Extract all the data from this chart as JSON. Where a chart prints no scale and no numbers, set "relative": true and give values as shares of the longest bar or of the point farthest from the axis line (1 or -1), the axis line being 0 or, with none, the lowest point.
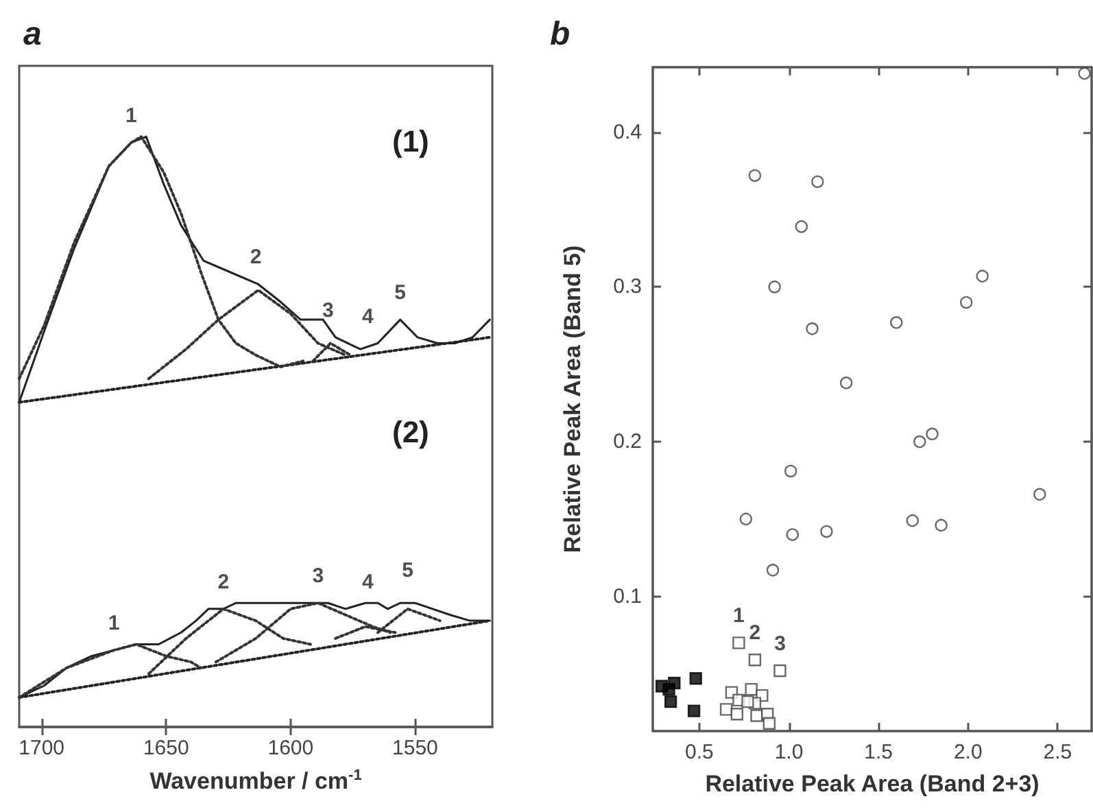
{
  "chart_data": [
    {
      "type": "line",
      "title": "a",
      "xlabel": "Wavenumber / cm$^{-1}$",
      "relative": true,
      "xlim": [
        1709,
        1519
      ],
      "xticks": [
        1700,
        1650,
        1600,
        1550
      ],
      "tick_labels": "x",
      "grid": false,
      "marker": "none",
      "series": [
        {
          "color": "#222222",
          "line_style": "solid",
          "x": [
            1709,
            1699,
            1687,
            1673,
            1664,
            1658,
            1651,
            1644,
            1635,
            1624,
            1613,
            1604,
            1596,
            1587,
            1582,
            1572,
            1565,
            1556,
            1549,
            1541,
            1534,
            1527,
            1520
          ],
          "values": [
            0.55,
            0.67,
            0.81,
            0.95,
            0.99,
            1,
            0.92,
            0.85,
            0.79,
            0.77,
            0.75,
            0.72,
            0.69,
            0.69,
            0.66,
            0.64,
            0.65,
            0.69,
            0.66,
            0.65,
            0.65,
            0.66,
            0.69
          ]
        },
        {
          "color": "#222222",
          "line_style": "dotted",
          "x": [
            1709,
            1520
          ],
          "values": [
            0.55,
            0.66
          ]
        },
        {
          "color": "#333333",
          "line_style": "dotted",
          "x": [
            1709,
            1699,
            1687,
            1673,
            1664,
            1660,
            1651,
            1644,
            1636,
            1629,
            1622,
            1614,
            1604,
            1595
          ],
          "values": [
            0.59,
            0.68,
            0.82,
            0.95,
            0.99,
            1,
            0.94,
            0.87,
            0.77,
            0.69,
            0.65,
            0.63,
            0.61,
            0.62
          ]
        },
        {
          "color": "#333333",
          "line_style": "dotted",
          "x": [
            1657,
            1642,
            1629,
            1613,
            1600,
            1589,
            1578
          ],
          "values": [
            0.59,
            0.64,
            0.69,
            0.74,
            0.7,
            0.65,
            0.63
          ]
        },
        {
          "color": "#333333",
          "line_style": "dotted",
          "x": [
            1591,
            1584,
            1576
          ],
          "values": [
            0.62,
            0.65,
            0.63
          ]
        },
        {
          "color": "#222222",
          "line_style": "solid",
          "x": [
            1709,
            1699,
            1690,
            1680,
            1671,
            1662,
            1653,
            1644,
            1638,
            1633,
            1627,
            1622,
            1614,
            1607,
            1600,
            1592,
            1585,
            1578,
            1570,
            1565,
            1561,
            1556,
            1550,
            1543,
            1536,
            1528,
            1520
          ],
          "values": [
            0.05,
            0.07,
            0.1,
            0.12,
            0.13,
            0.14,
            0.14,
            0.16,
            0.18,
            0.2,
            0.2,
            0.21,
            0.21,
            0.21,
            0.21,
            0.21,
            0.21,
            0.2,
            0.21,
            0.21,
            0.2,
            0.21,
            0.21,
            0.2,
            0.19,
            0.18,
            0.18
          ]
        },
        {
          "color": "#222222",
          "line_style": "dotted",
          "x": [
            1709,
            1520
          ],
          "values": [
            0.05,
            0.18
          ]
        },
        {
          "color": "#333333",
          "line_style": "dotted",
          "x": [
            1709,
            1690,
            1671,
            1662,
            1650,
            1640,
            1636
          ],
          "values": [
            0.05,
            0.1,
            0.13,
            0.14,
            0.12,
            0.11,
            0.1
          ]
        },
        {
          "color": "#333333",
          "line_style": "dotted",
          "x": [
            1657,
            1642,
            1627,
            1614,
            1603,
            1592
          ],
          "values": [
            0.09,
            0.15,
            0.2,
            0.18,
            0.15,
            0.14
          ]
        },
        {
          "color": "#333333",
          "line_style": "dotted",
          "x": [
            1630,
            1614,
            1600,
            1589,
            1578,
            1567,
            1560
          ],
          "values": [
            0.11,
            0.15,
            0.2,
            0.21,
            0.19,
            0.17,
            0.16
          ]
        },
        {
          "color": "#333333",
          "line_style": "dotted",
          "x": [
            1582,
            1570,
            1558
          ],
          "values": [
            0.15,
            0.17,
            0.16
          ]
        },
        {
          "color": "#333333",
          "line_style": "dotted",
          "x": [
            1565,
            1553,
            1540
          ],
          "values": [
            0.16,
            0.2,
            0.18
          ]
        }
      ],
      "annotations": [
        {
          "text": "1",
          "x": 1664,
          "y": 0.99
        },
        {
          "text": "2",
          "x": 1614,
          "y": 0.75
        },
        {
          "text": "3",
          "x": 1585,
          "y": 0.66
        },
        {
          "text": "4",
          "x": 1569,
          "y": 0.65
        },
        {
          "text": "5",
          "x": 1556,
          "y": 0.69
        },
        "(1)",
        {
          "text": "1",
          "x": 1671,
          "y": 0.13
        },
        {
          "text": "2",
          "x": 1627,
          "y": 0.2
        },
        {
          "text": "3",
          "x": 1589,
          "y": 0.21
        },
        {
          "text": "4",
          "x": 1569,
          "y": 0.2
        },
        {
          "text": "5",
          "x": 1553,
          "y": 0.22
        },
        "(2)"
      ]
    },
    {
      "type": "scatter",
      "title": "b",
      "xlabel": "Relative Peak Area (Band 2+3)",
      "ylabel": "Relative Peak Area (Band 5)",
      "xlim": [
        0.24,
        2.69
      ],
      "xticks": [
        0.5,
        {
          "value": 1,
          "label": "1.0"
        },
        1.5,
        {
          "value": 2,
          "label": "2.0"
        },
        2.5
      ],
      "ylim": [
        0.013,
        0.442
      ],
      "yticks": [
        0.1,
        0.2,
        0.3,
        0.4
      ],
      "grid": false,
      "series": [
        {
          "color": "#444444",
          "marker": "circle",
          "x": [
            0.81,
            1.16,
            1.07,
            0.92,
            1.13,
            1.6,
            1.99,
            2.08,
            1.32,
            2.65,
            1.73,
            1.8,
            1.01,
            2.4,
            0.76,
            1.02,
            1.21,
            1.69,
            1.85,
            0.91
          ],
          "values": [
            0.372,
            0.368,
            0.339,
            0.3,
            0.273,
            0.277,
            0.29,
            0.307,
            0.238,
            0.438,
            0.2,
            0.205,
            0.181,
            0.166,
            0.15,
            0.14,
            0.142,
            0.149,
            0.146,
            0.117
          ]
        },
        {
          "color": "#444444",
          "marker": "square",
          "x": [
            0.72,
            0.81,
            0.95,
            0.68,
            0.79,
            0.85,
            0.72,
            0.65,
            0.71,
            0.81,
            0.82,
            0.88,
            0.89,
            0.77
          ],
          "values": [
            0.07,
            0.059,
            0.052,
            0.038,
            0.04,
            0.036,
            0.033,
            0.027,
            0.024,
            0.031,
            0.023,
            0.024,
            0.018,
            0.032
          ]
        },
        {
          "color": "#000000",
          "marker": "square",
          "x": [
            0.29,
            0.33,
            0.36,
            0.34,
            0.48,
            0.47
          ],
          "values": [
            0.042,
            0.04,
            0.044,
            0.032,
            0.047,
            0.026
          ]
        }
      ],
      "annotations": [
        {
          "text": "1",
          "x": 0.72,
          "y": 0.07
        },
        {
          "text": "2",
          "x": 0.81,
          "y": 0.059
        },
        {
          "text": "3",
          "x": 0.95,
          "y": 0.052
        }
      ]
    }
  ]
}
